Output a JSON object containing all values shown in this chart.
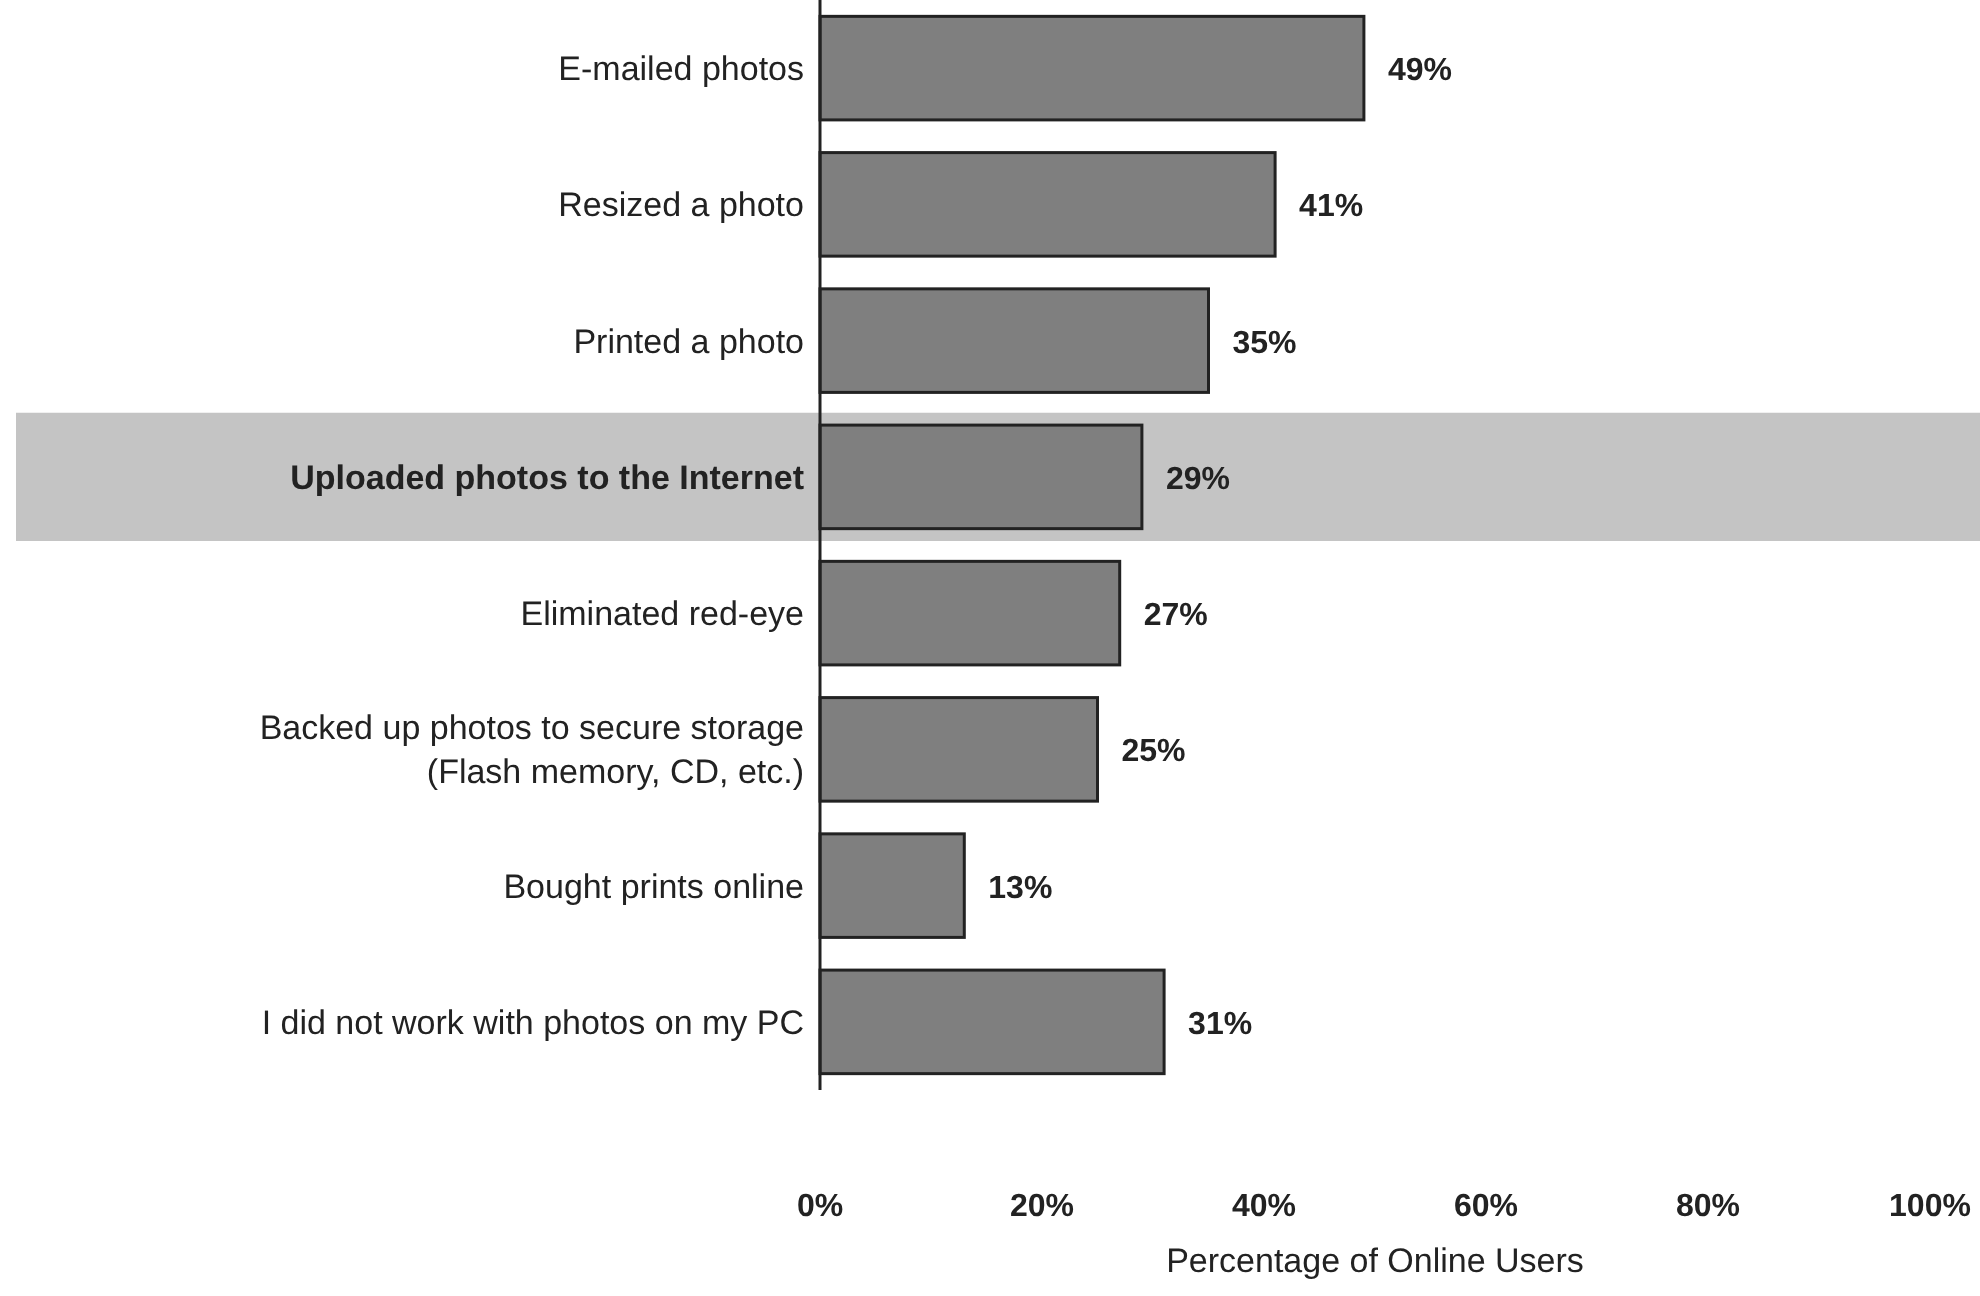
{
  "chart_data": {
    "type": "bar",
    "orientation": "horizontal",
    "xlabel": "Percentage of Online Users",
    "categories": [
      "E-mailed photos",
      "Resized a photo",
      "Printed a photo",
      "Uploaded photos to the Internet",
      "Eliminated red-eye",
      "Backed up photos to secure storage\n(Flash memory, CD, etc.)",
      "Bought prints online",
      "I did not work with photos on my PC"
    ],
    "values": [
      49,
      41,
      35,
      29,
      27,
      25,
      13,
      31
    ],
    "value_labels": [
      "49%",
      "41%",
      "35%",
      "29%",
      "27%",
      "25%",
      "13%",
      "31%"
    ],
    "color": "#7f7f7f",
    "xlim": [
      0,
      100
    ],
    "xticks": [
      {
        "value": 0,
        "label": "0%"
      },
      {
        "value": 20,
        "label": "20%"
      },
      {
        "value": 40,
        "label": "40%"
      },
      {
        "value": 60,
        "label": "60%"
      },
      {
        "value": 80,
        "label": "80%"
      },
      {
        "value": 100,
        "label": "100%"
      }
    ],
    "bands": [
      {
        "axis": "y",
        "from": "Uploaded photos to the Internet",
        "to": "Uploaded photos to the Internet",
        "color": "#c4c4c4"
      }
    ],
    "grid": false
  }
}
